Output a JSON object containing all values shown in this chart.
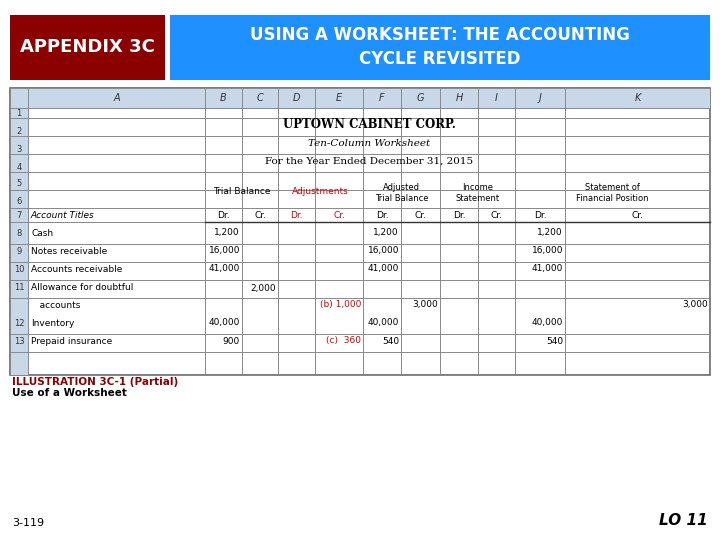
{
  "bg_color": "#ffffff",
  "header_dark_red": "#8B0000",
  "header_blue": "#1E90FF",
  "header_text_color": "#ffffff",
  "appendix_text": "APPENDIX 3C",
  "title_text": "USING A WORKSHEET: THE ACCOUNTING\nCYCLE REVISITED",
  "company_name": "UPTOWN CABINET CORP.",
  "worksheet_title": "Ten-Column Worksheet",
  "period": "For the Year Ended December 31, 2015",
  "adjustments_color": "#cc0000",
  "illustration_text": "ILLUSTRATION 3C-1 (Partial)",
  "caption_text": "Use of a Worksheet",
  "page_num": "3-119",
  "lo_text": "LO 11",
  "col_hdr_bg": "#c8d8e8",
  "rn_col_bg": "#c8d8e8"
}
